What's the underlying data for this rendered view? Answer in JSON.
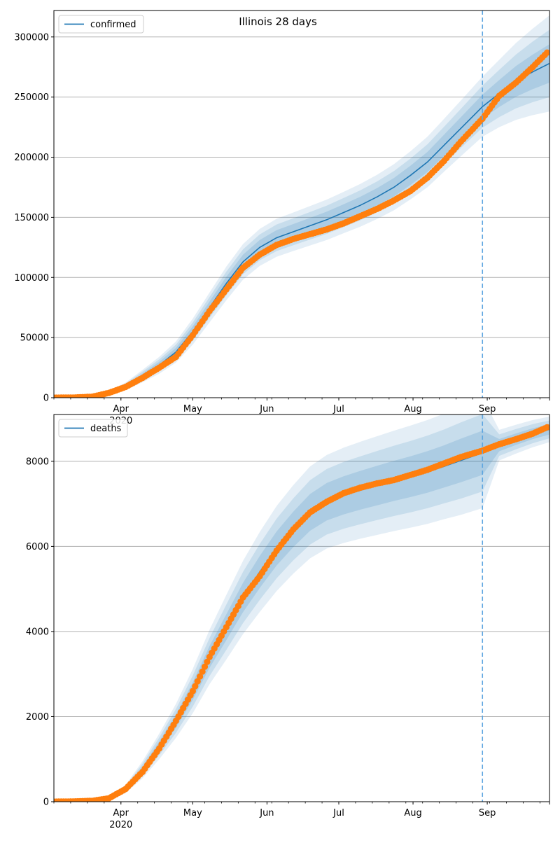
{
  "figure": {
    "title": "Illinois 28 days",
    "colors": {
      "model_line": "#1f77b4",
      "observed_points": "#ff7f0e",
      "band": "#1f77b4",
      "forecast_marker": "#5da5e0",
      "grid": "#b0b0b0"
    }
  },
  "chart_data": [
    {
      "type": "line",
      "panel": "top",
      "title": "Illinois 28 days",
      "legend": [
        {
          "label": "confirmed",
          "position": "top-left"
        }
      ],
      "xlabel": "",
      "ylabel": "",
      "x_ticks": [
        {
          "date": "2020-04-01",
          "label": "Apr",
          "year": "2020"
        },
        {
          "date": "2020-05-01",
          "label": "May"
        },
        {
          "date": "2020-06-01",
          "label": "Jun"
        },
        {
          "date": "2020-07-01",
          "label": "Jul"
        },
        {
          "date": "2020-08-01",
          "label": "Aug"
        },
        {
          "date": "2020-09-01",
          "label": "Sep"
        }
      ],
      "xlim": [
        "2020-03-04",
        "2020-09-27"
      ],
      "ylim": [
        0,
        322000
      ],
      "y_ticks": [
        0,
        50000,
        100000,
        150000,
        200000,
        250000,
        300000
      ],
      "grid": "horizontal",
      "forecast_start": "2020-08-30",
      "model": {
        "name": "confirmed",
        "dates": [
          "2020-03-04",
          "2020-03-20",
          "2020-03-27",
          "2020-04-03",
          "2020-04-10",
          "2020-04-17",
          "2020-04-24",
          "2020-05-01",
          "2020-05-08",
          "2020-05-15",
          "2020-05-22",
          "2020-05-29",
          "2020-06-05",
          "2020-06-12",
          "2020-06-19",
          "2020-06-26",
          "2020-07-03",
          "2020-07-10",
          "2020-07-17",
          "2020-07-24",
          "2020-07-31",
          "2020-08-07",
          "2020-08-14",
          "2020-08-21",
          "2020-08-30",
          "2020-09-06",
          "2020-09-13",
          "2020-09-20",
          "2020-09-27"
        ],
        "values": [
          0,
          800,
          4000,
          9500,
          18000,
          27000,
          38000,
          55000,
          75000,
          95000,
          113000,
          125000,
          133000,
          138000,
          143000,
          148000,
          154000,
          160000,
          167000,
          175000,
          185000,
          196000,
          210000,
          224000,
          242000,
          253000,
          263000,
          271000,
          278000
        ],
        "band_widths": [
          0,
          200,
          800,
          1600,
          2600,
          3500,
          4400,
          5400,
          6200,
          7000,
          7400,
          7700,
          7900,
          8000,
          8200,
          8400,
          8600,
          8900,
          9200,
          9600,
          10000,
          10500,
          11000,
          11600,
          12500,
          14000,
          16000,
          18000,
          20000
        ]
      },
      "observed": {
        "dates": [
          "2020-03-04",
          "2020-03-12",
          "2020-03-20",
          "2020-03-27",
          "2020-04-03",
          "2020-04-10",
          "2020-04-17",
          "2020-04-24",
          "2020-05-01",
          "2020-05-08",
          "2020-05-15",
          "2020-05-22",
          "2020-05-29",
          "2020-06-05",
          "2020-06-12",
          "2020-06-19",
          "2020-06-26",
          "2020-07-03",
          "2020-07-10",
          "2020-07-17",
          "2020-07-24",
          "2020-07-31",
          "2020-08-07",
          "2020-08-14",
          "2020-08-21",
          "2020-08-30",
          "2020-09-06",
          "2020-09-13",
          "2020-09-20",
          "2020-09-26"
        ],
        "values": [
          0,
          100,
          800,
          4000,
          9000,
          16500,
          25000,
          34000,
          52000,
          72000,
          90000,
          108000,
          119000,
          127000,
          132000,
          136000,
          140000,
          145000,
          151000,
          157000,
          164000,
          172000,
          183000,
          197000,
          213000,
          232000,
          251000,
          262000,
          275000,
          287000
        ]
      }
    },
    {
      "type": "line",
      "panel": "bottom",
      "legend": [
        {
          "label": "deaths",
          "position": "top-left"
        }
      ],
      "xlabel": "",
      "ylabel": "",
      "x_ticks": [
        {
          "date": "2020-04-01",
          "label": "Apr",
          "year": "2020"
        },
        {
          "date": "2020-05-01",
          "label": "May"
        },
        {
          "date": "2020-06-01",
          "label": "Jun"
        },
        {
          "date": "2020-07-01",
          "label": "Jul"
        },
        {
          "date": "2020-08-01",
          "label": "Aug"
        },
        {
          "date": "2020-09-01",
          "label": "Sep"
        }
      ],
      "xlim": [
        "2020-03-04",
        "2020-09-27"
      ],
      "ylim": [
        0,
        9100
      ],
      "y_ticks": [
        0,
        2000,
        4000,
        6000,
        8000
      ],
      "grid": "horizontal",
      "forecast_start": "2020-08-30",
      "model": {
        "name": "deaths",
        "dates": [
          "2020-03-04",
          "2020-03-20",
          "2020-03-27",
          "2020-04-03",
          "2020-04-10",
          "2020-04-17",
          "2020-04-24",
          "2020-05-01",
          "2020-05-08",
          "2020-05-15",
          "2020-05-22",
          "2020-05-29",
          "2020-06-05",
          "2020-06-12",
          "2020-06-19",
          "2020-06-26",
          "2020-07-03",
          "2020-07-10",
          "2020-07-17",
          "2020-07-24",
          "2020-07-31",
          "2020-08-07",
          "2020-08-14",
          "2020-08-21",
          "2020-08-30",
          "2020-09-06",
          "2020-09-13",
          "2020-09-20",
          "2020-09-27"
        ],
        "values": [
          0,
          10,
          80,
          300,
          750,
          1300,
          1900,
          2600,
          3400,
          4100,
          4800,
          5400,
          5950,
          6400,
          6800,
          7050,
          7200,
          7320,
          7430,
          7540,
          7640,
          7750,
          7880,
          8020,
          8200,
          8380,
          8520,
          8650,
          8750
        ],
        "band_widths": [
          0,
          5,
          20,
          50,
          100,
          150,
          200,
          260,
          320,
          380,
          430,
          470,
          500,
          520,
          540,
          550,
          560,
          570,
          580,
          590,
          600,
          610,
          620,
          640,
          650,
          180,
          170,
          160,
          150
        ]
      },
      "observed": {
        "dates": [
          "2020-03-04",
          "2020-03-12",
          "2020-03-20",
          "2020-03-27",
          "2020-04-03",
          "2020-04-10",
          "2020-04-17",
          "2020-04-24",
          "2020-05-01",
          "2020-05-08",
          "2020-05-15",
          "2020-05-22",
          "2020-05-29",
          "2020-06-05",
          "2020-06-12",
          "2020-06-19",
          "2020-06-26",
          "2020-07-03",
          "2020-07-10",
          "2020-07-17",
          "2020-07-24",
          "2020-07-31",
          "2020-08-07",
          "2020-08-14",
          "2020-08-21",
          "2020-08-30",
          "2020-09-06",
          "2020-09-13",
          "2020-09-20",
          "2020-09-26"
        ],
        "values": [
          0,
          5,
          20,
          80,
          300,
          700,
          1250,
          1900,
          2600,
          3400,
          4100,
          4800,
          5300,
          5900,
          6400,
          6800,
          7050,
          7250,
          7380,
          7480,
          7560,
          7680,
          7800,
          7950,
          8100,
          8250,
          8400,
          8520,
          8650,
          8800
        ]
      }
    }
  ]
}
